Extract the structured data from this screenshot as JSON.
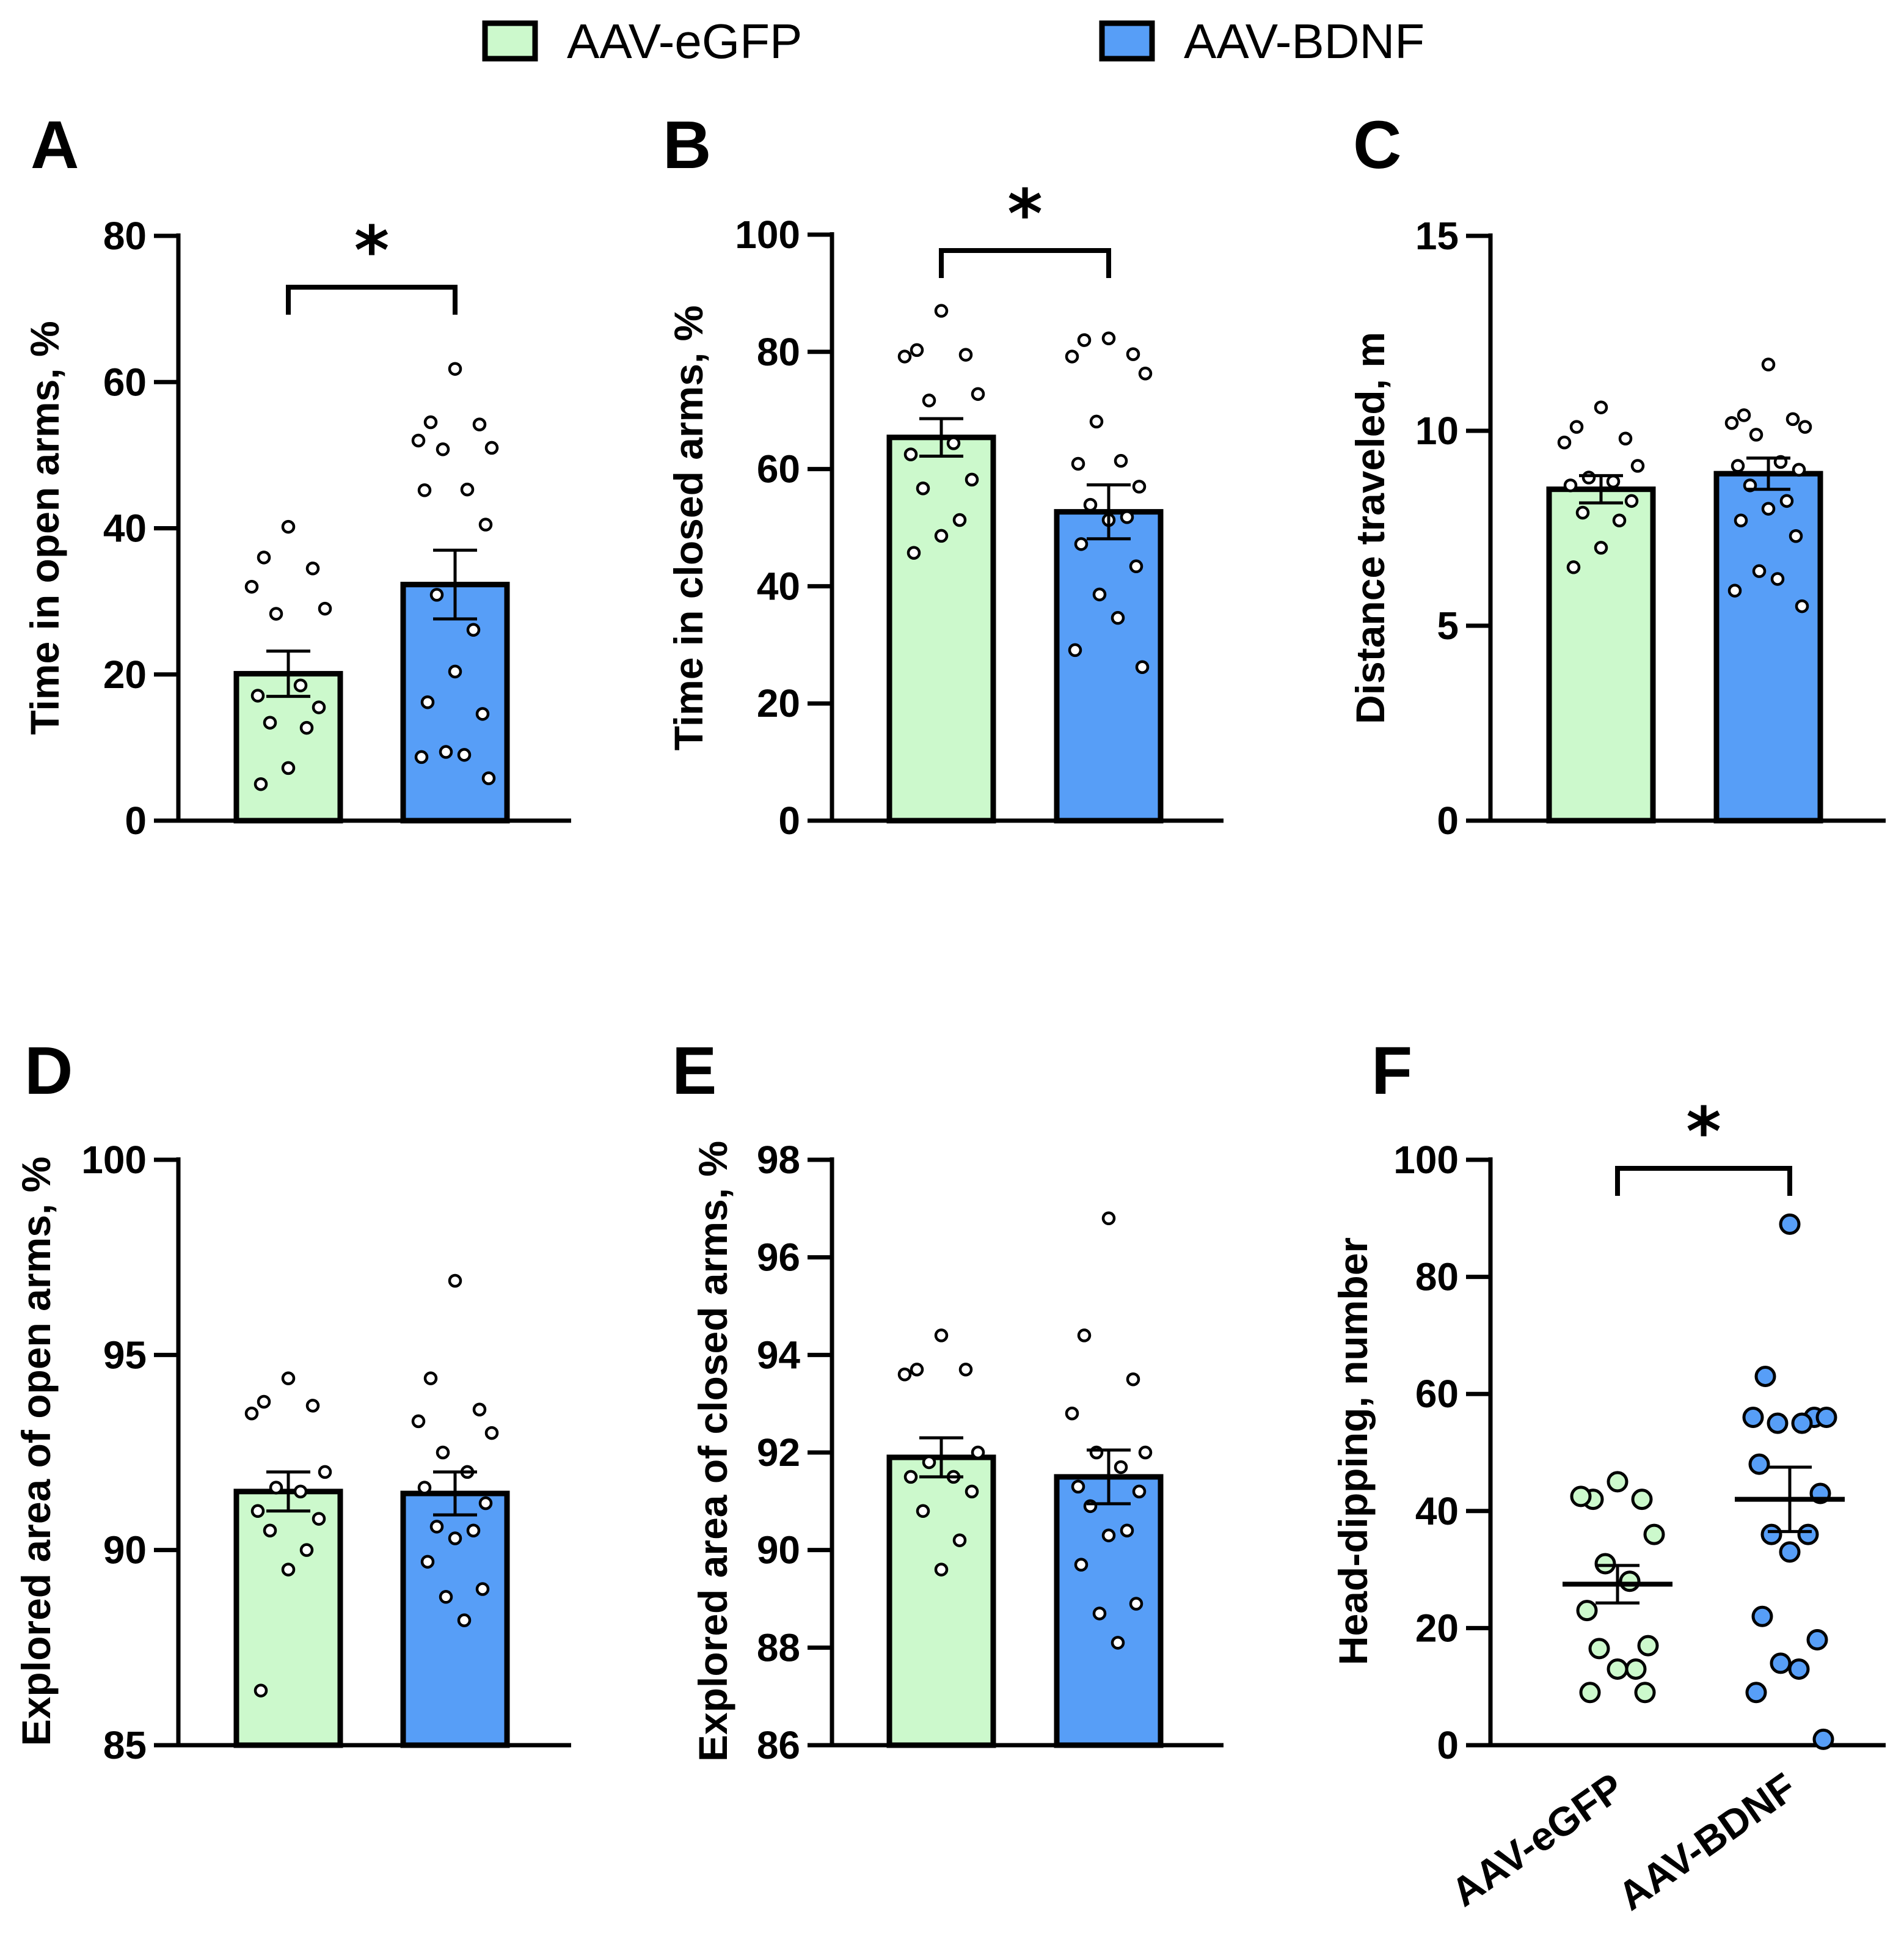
{
  "legend": {
    "items": [
      {
        "label": "AAV-eGFP",
        "color": "#ccf9cc"
      },
      {
        "label": "AAV-BDNF",
        "color": "#579ef7"
      }
    ]
  },
  "chart_data": [
    {
      "panel": "A",
      "type": "bar",
      "ylabel": "Time in open arms, %",
      "ylim": [
        0,
        80
      ],
      "yticks": [
        0,
        20,
        40,
        60,
        80
      ],
      "categories": [
        "AAV-eGFP",
        "AAV-BDNF"
      ],
      "means": [
        20.1,
        32.3
      ],
      "sem": [
        3.1,
        4.7
      ],
      "points": [
        [
          40.2,
          36.0,
          34.5,
          32.0,
          29.0,
          28.3,
          18.5,
          17.1,
          15.5,
          13.4,
          12.7,
          7.2,
          5.0
        ],
        [
          61.8,
          54.5,
          54.2,
          52.0,
          51.0,
          50.8,
          45.3,
          45.2,
          40.5,
          30.9,
          26.1,
          20.4,
          16.2,
          14.6,
          9.4,
          9.0,
          8.7,
          5.8
        ]
      ],
      "significance": "*"
    },
    {
      "panel": "B",
      "type": "bar",
      "ylabel": "Time in closed arms, %",
      "ylim": [
        0,
        100
      ],
      "yticks": [
        0,
        20,
        40,
        60,
        80,
        100
      ],
      "categories": [
        "AAV-eGFP",
        "AAV-BDNF"
      ],
      "means": [
        65.4,
        52.7
      ],
      "sem": [
        3.2,
        4.6
      ],
      "points": [
        [
          87.0,
          80.3,
          79.5,
          79.2,
          72.8,
          71.7,
          64.4,
          62.5,
          58.2,
          56.7,
          51.3,
          48.6,
          45.7
        ],
        [
          82.3,
          82.0,
          79.6,
          79.2,
          76.3,
          68.1,
          61.4,
          60.9,
          57.0,
          53.9,
          51.8,
          51.3,
          47.2,
          43.4,
          38.6,
          34.6,
          29.1,
          26.2
        ]
      ],
      "significance": "*"
    },
    {
      "panel": "C",
      "type": "bar",
      "ylabel": "Distance traveled, m",
      "ylim": [
        0,
        15
      ],
      "yticks": [
        0,
        5,
        10,
        15
      ],
      "categories": [
        "AAV-eGFP",
        "AAV-BDNF"
      ],
      "means": [
        8.5,
        8.9
      ],
      "sem": [
        0.35,
        0.4
      ],
      "points": [
        [
          10.6,
          10.1,
          9.8,
          9.7,
          9.1,
          8.8,
          8.7,
          8.6,
          8.2,
          7.9,
          7.7,
          7.0,
          6.5
        ],
        [
          11.7,
          10.4,
          10.3,
          10.2,
          10.1,
          9.9,
          9.2,
          9.1,
          9.0,
          8.6,
          8.2,
          8.0,
          7.7,
          7.3,
          6.4,
          6.2,
          5.9,
          5.5
        ]
      ]
    },
    {
      "panel": "D",
      "type": "bar",
      "ylabel": "Explored area of open arms, %",
      "ylim": [
        85,
        100
      ],
      "yticks": [
        85,
        90,
        95,
        100
      ],
      "categories": [
        "AAV-eGFP",
        "AAV-BDNF"
      ],
      "means": [
        91.5,
        91.45
      ],
      "sem": [
        0.5,
        0.55
      ],
      "points": [
        [
          94.4,
          93.8,
          93.7,
          93.5,
          92.0,
          91.6,
          91.5,
          91.0,
          90.8,
          90.5,
          90.0,
          89.5,
          86.4
        ],
        [
          96.9,
          94.4,
          93.6,
          93.3,
          93.0,
          92.5,
          92.0,
          91.6,
          91.2,
          90.6,
          90.5,
          90.3,
          89.7,
          89.0,
          88.8,
          88.2
        ]
      ]
    },
    {
      "panel": "E",
      "type": "bar",
      "ylabel": "Explored area of closed arms, %",
      "ylim": [
        86,
        98
      ],
      "yticks": [
        86,
        88,
        90,
        92,
        94,
        96,
        98
      ],
      "categories": [
        "AAV-eGFP",
        "AAV-BDNF"
      ],
      "means": [
        91.9,
        91.5
      ],
      "sem": [
        0.4,
        0.55
      ],
      "points": [
        [
          94.4,
          93.7,
          93.7,
          93.6,
          92.0,
          91.8,
          91.5,
          91.5,
          91.2,
          90.8,
          90.2,
          89.6
        ],
        [
          96.8,
          94.4,
          93.5,
          92.8,
          92.0,
          92.0,
          91.7,
          91.3,
          91.2,
          90.9,
          90.4,
          90.3,
          89.7,
          88.9,
          88.7,
          88.1
        ]
      ]
    },
    {
      "panel": "F",
      "type": "scatter",
      "ylabel": "Head-dipping, number",
      "ylim": [
        0,
        100
      ],
      "yticks": [
        0,
        20,
        40,
        60,
        80,
        100
      ],
      "categories": [
        "AAV-eGFP",
        "AAV-BDNF"
      ],
      "means": [
        27.5,
        42.0
      ],
      "sem": [
        3.2,
        5.5
      ],
      "points": [
        [
          45.0,
          42.0,
          42.0,
          42.5,
          36.0,
          31.0,
          28.0,
          23.0,
          17.0,
          16.5,
          13.0,
          13.0,
          9.0,
          9.0
        ],
        [
          89.0,
          63.0,
          56.0,
          56.0,
          56.0,
          55.0,
          55.0,
          48.0,
          43.0,
          36.0,
          36.0,
          33.0,
          22.0,
          18.0,
          14.0,
          13.0,
          9.0,
          1.0
        ]
      ],
      "significance": "*"
    }
  ]
}
